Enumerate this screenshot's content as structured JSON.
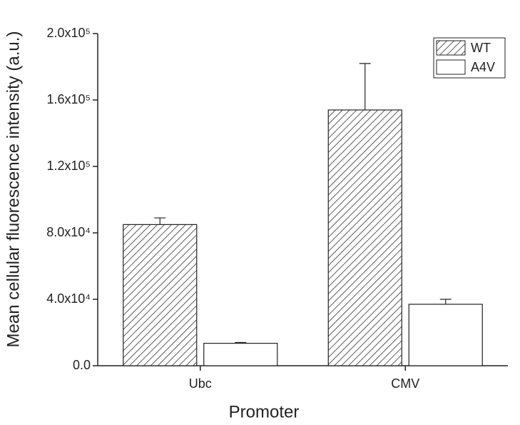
{
  "chart_data": {
    "type": "bar",
    "x_label": "Promoter",
    "y_label": "Mean cellular fluorescence intensity (a.u.)",
    "categories": [
      "Ubc",
      "CMV"
    ],
    "series": [
      {
        "name": "WT",
        "color": "#333333",
        "hatch": true,
        "values": [
          85000,
          154000
        ],
        "errors": [
          4000,
          28000
        ]
      },
      {
        "name": "A4V",
        "color": "#ffffff",
        "hatch": false,
        "values": [
          13500,
          37000
        ],
        "errors": [
          500,
          3000
        ]
      }
    ],
    "ylim": [
      0,
      200000
    ],
    "yticks": [
      {
        "value": 0,
        "label": "0.0"
      },
      {
        "value": 40000,
        "label": "4.0x10⁴"
      },
      {
        "value": 80000,
        "label": "8.0x10⁴"
      },
      {
        "value": 120000,
        "label": "1.2x10⁵"
      },
      {
        "value": 160000,
        "label": "1.6x10⁵"
      },
      {
        "value": 200000,
        "label": "2.0x10⁵"
      }
    ],
    "legend": "upper right"
  }
}
